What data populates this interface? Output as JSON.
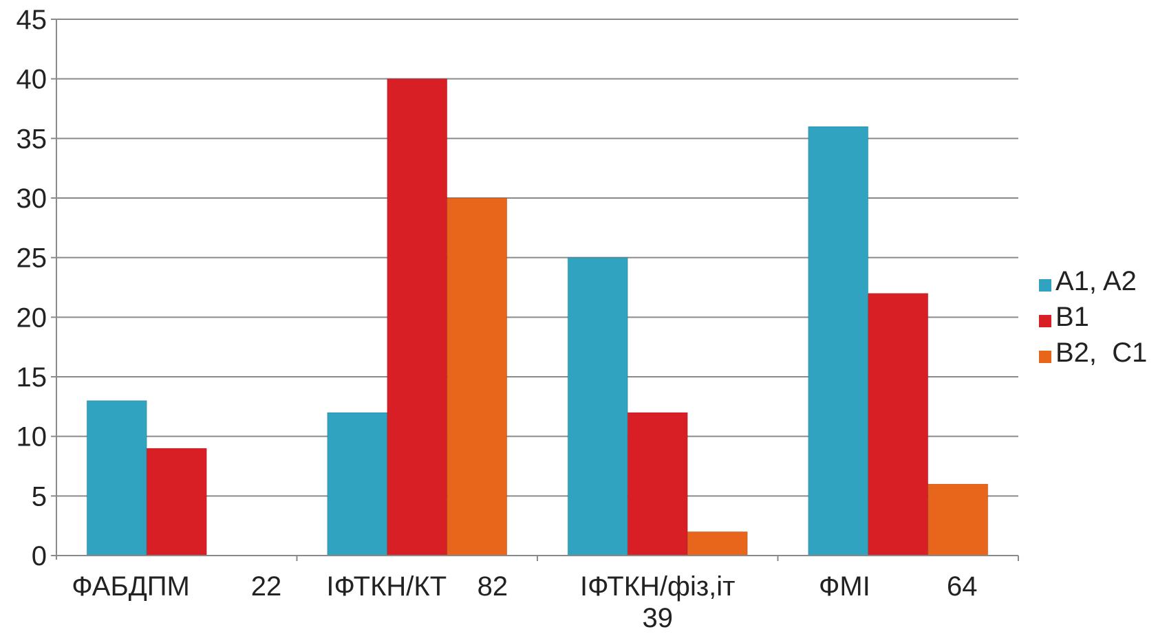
{
  "chart_data": {
    "type": "bar",
    "categories": [
      [
        "ФАБДПМ        22"
      ],
      [
        "ІФТКН/КТ    82"
      ],
      [
        "ІФТКН/фіз,іт",
        "39"
      ],
      [
        "ФМІ          64"
      ]
    ],
    "series": [
      {
        "name": "A1, A2",
        "color": "#2fa3c0",
        "values": [
          13,
          12,
          25,
          36
        ]
      },
      {
        "name": "B1",
        "color": "#d91f26",
        "values": [
          9,
          40,
          12,
          22
        ]
      },
      {
        "name": "B2,  C1",
        "color": "#e8661c",
        "values": [
          0,
          30,
          2,
          6
        ]
      }
    ],
    "ylim": [
      0,
      45
    ],
    "yticks": [
      0,
      5,
      10,
      15,
      20,
      25,
      30,
      35,
      40,
      45
    ],
    "grid": true,
    "legend_position": "right"
  }
}
